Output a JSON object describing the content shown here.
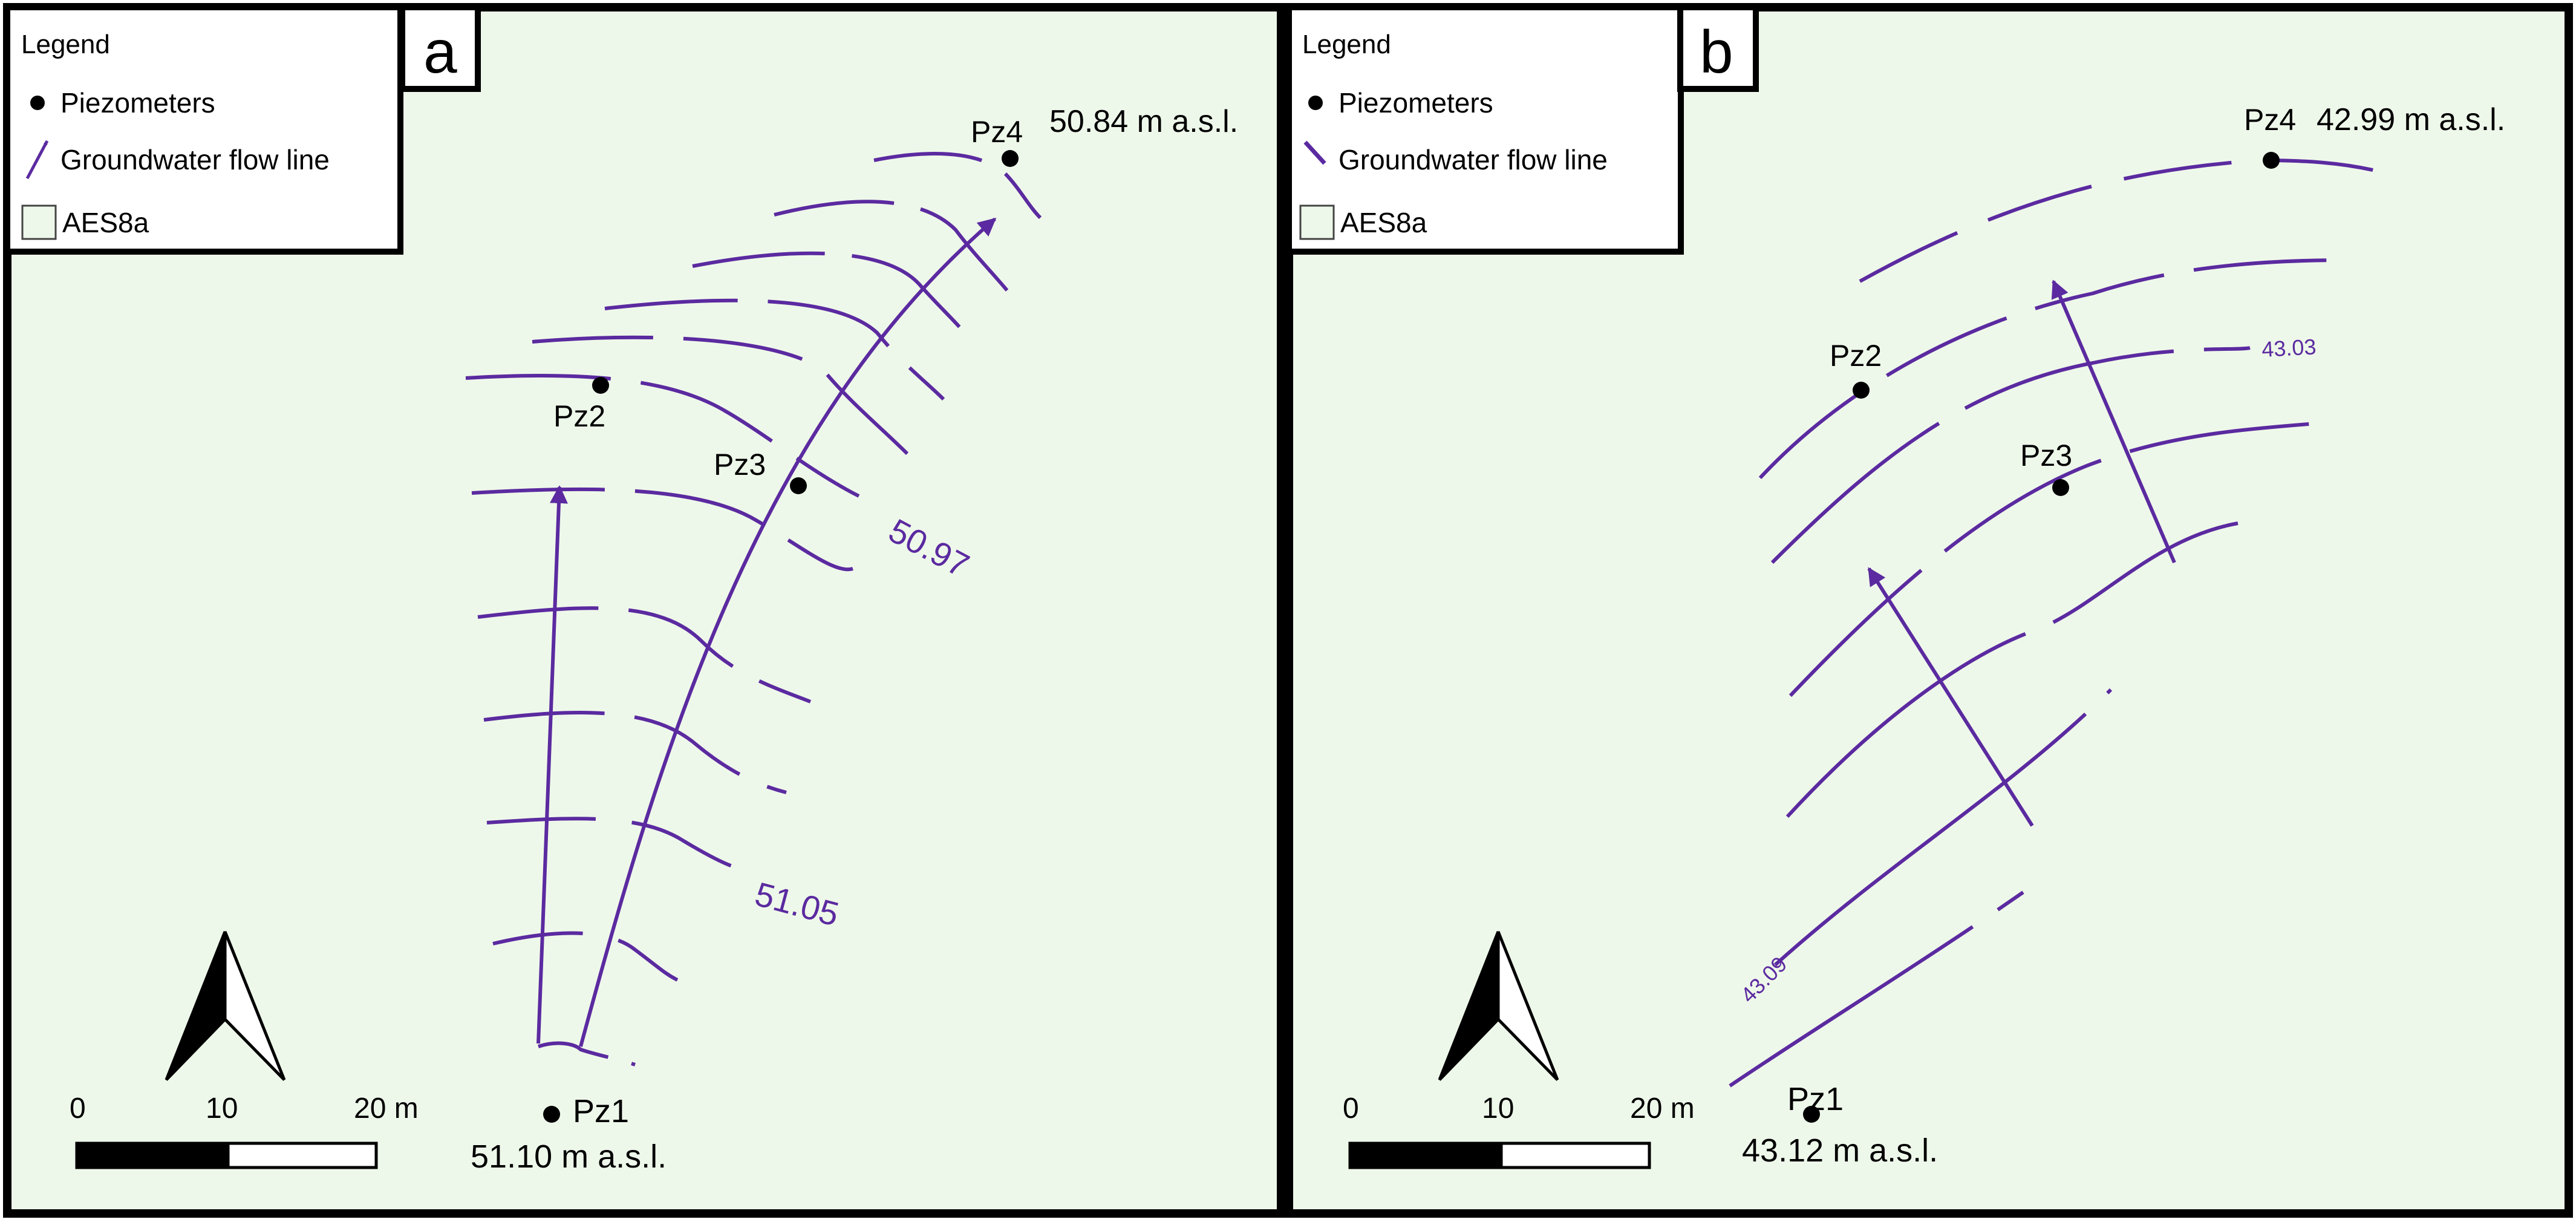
{
  "colors": {
    "background": "#eef8ea",
    "contour": "#5b2aa0",
    "frame": "#000000"
  },
  "panels": [
    {
      "letter": "a",
      "legend": {
        "title": "Legend",
        "items": [
          {
            "icon": "dot-icon",
            "label": "Piezometers"
          },
          {
            "icon": "flow-arrow-icon",
            "label": "Groundwater flow line"
          },
          {
            "icon": "area-swatch-icon",
            "label": "AES8a"
          }
        ]
      },
      "piezometers": [
        {
          "name": "Pz1",
          "elevation": "51.10 m a.s.l."
        },
        {
          "name": "Pz2",
          "elevation": ""
        },
        {
          "name": "Pz3",
          "elevation": ""
        },
        {
          "name": "Pz4",
          "elevation": "50.84 m a.s.l."
        }
      ],
      "contour_labels": [
        "50.97",
        "51.05"
      ],
      "scale": {
        "ticks": [
          "0",
          "10",
          "20 m"
        ]
      }
    },
    {
      "letter": "b",
      "legend": {
        "title": "Legend",
        "items": [
          {
            "icon": "dot-icon",
            "label": "Piezometers"
          },
          {
            "icon": "flow-arrow-icon",
            "label": "Groundwater flow line"
          },
          {
            "icon": "area-swatch-icon",
            "label": "AES8a"
          }
        ]
      },
      "piezometers": [
        {
          "name": "Pz1",
          "elevation": "43.12 m a.s.l."
        },
        {
          "name": "Pz2",
          "elevation": ""
        },
        {
          "name": "Pz3",
          "elevation": ""
        },
        {
          "name": "Pz4",
          "elevation": "42.99 m a.s.l."
        }
      ],
      "contour_labels": [
        "43.03",
        "43.09"
      ],
      "scale": {
        "ticks": [
          "0",
          "10",
          "20 m"
        ]
      }
    }
  ]
}
